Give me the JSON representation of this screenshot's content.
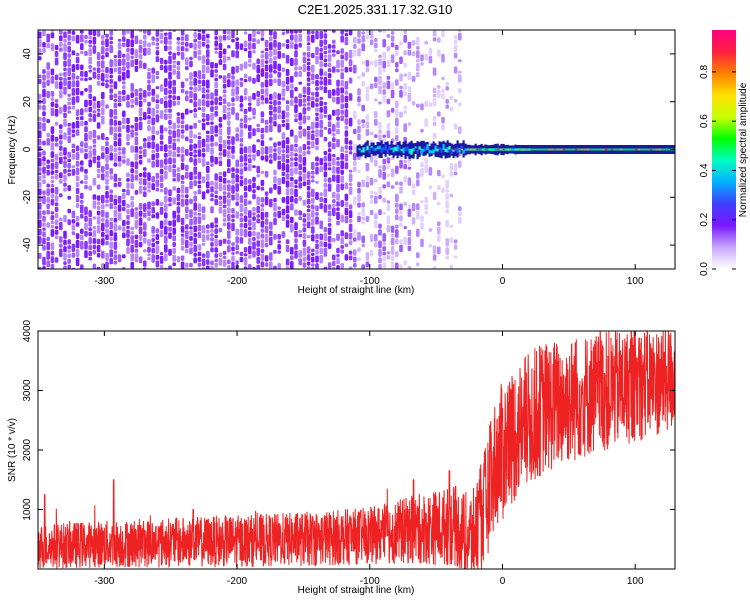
{
  "title": "C2E1.2025.331.17.32.G10",
  "chart_data": [
    {
      "type": "heatmap",
      "name": "spectrogram",
      "xlabel": "Height of straight line (km)",
      "ylabel": "Frequency (Hz)",
      "xlim": [
        -350,
        130
      ],
      "ylim": [
        -50,
        50
      ],
      "xticks": [
        -300,
        -200,
        -100,
        0,
        100
      ],
      "yticks": [
        -40,
        -20,
        0,
        20,
        40
      ],
      "xtick_labels": [
        "-300",
        "-200",
        "-100",
        "0",
        "100"
      ],
      "ytick_labels": [
        "-40",
        "-20",
        "0",
        "20",
        "40"
      ],
      "noise_region_km": [
        -350,
        -33
      ],
      "signal_start_km": -110,
      "signal_center_hz": 0,
      "colorbar": {
        "label": "Normalized spectral amplitude",
        "range": [
          0,
          0.97
        ],
        "ticks": [
          0.0,
          0.2,
          0.4,
          0.6,
          0.8
        ],
        "tick_labels": [
          "0.0",
          "0.2",
          "0.4",
          "0.6",
          "0.8"
        ],
        "colors": [
          "#ffffff",
          "#c7a8ff",
          "#7a17ff",
          "#4040ff",
          "#00b0ff",
          "#00ffc0",
          "#00ff00",
          "#c8ff00",
          "#ffe000",
          "#ff8000",
          "#ff2040",
          "#ff0080"
        ]
      }
    },
    {
      "type": "line",
      "name": "snr",
      "xlabel": "Height of straight line (km)",
      "ylabel": "SNR (10 * v/v)",
      "xlim": [
        -350,
        130
      ],
      "ylim": [
        0,
        4000
      ],
      "xticks": [
        -300,
        -200,
        -100,
        0,
        100
      ],
      "yticks": [
        1000,
        2000,
        3000,
        4000
      ],
      "xtick_labels": [
        "-300",
        "-200",
        "-100",
        "0",
        "100"
      ],
      "ytick_labels": [
        "1000",
        "2000",
        "3000",
        "4000"
      ],
      "color": "#ee2222",
      "trend": [
        {
          "x": -350,
          "y": 380
        },
        {
          "x": -300,
          "y": 420
        },
        {
          "x": -200,
          "y": 470
        },
        {
          "x": -150,
          "y": 500
        },
        {
          "x": -100,
          "y": 560
        },
        {
          "x": -60,
          "y": 680
        },
        {
          "x": -35,
          "y": 720
        },
        {
          "x": -25,
          "y": 500
        },
        {
          "x": -15,
          "y": 900
        },
        {
          "x": -5,
          "y": 1800
        },
        {
          "x": 10,
          "y": 2300
        },
        {
          "x": 30,
          "y": 2700
        },
        {
          "x": 60,
          "y": 2900
        },
        {
          "x": 100,
          "y": 3100
        },
        {
          "x": 130,
          "y": 3200
        }
      ],
      "noise_amplitude": [
        {
          "x": -350,
          "y": 380
        },
        {
          "x": -100,
          "y": 480
        },
        {
          "x": -30,
          "y": 700
        },
        {
          "x": 0,
          "y": 1200
        },
        {
          "x": 130,
          "y": 900
        }
      ],
      "spikes": [
        {
          "x": -345,
          "y": 1250
        },
        {
          "x": -293,
          "y": 1500
        },
        {
          "x": -233,
          "y": 1000
        },
        {
          "x": -40,
          "y": 1650
        },
        {
          "x": -67,
          "y": 1500
        },
        {
          "x": 0,
          "y": 2700
        },
        {
          "x": 55,
          "y": 3800
        },
        {
          "x": 103,
          "y": 3880
        }
      ]
    }
  ]
}
